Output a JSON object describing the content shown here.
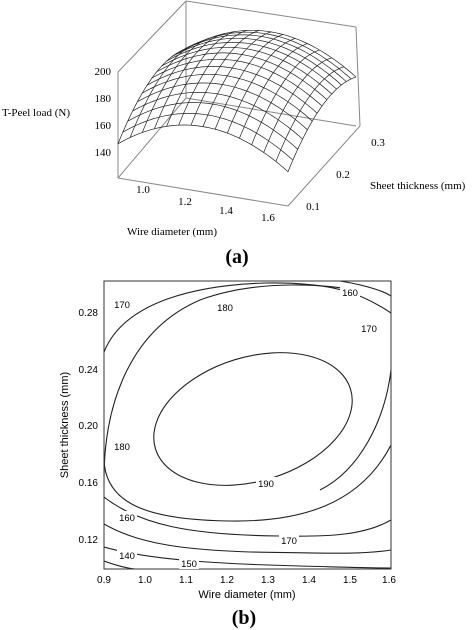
{
  "panel_a": {
    "caption": "(a)",
    "zlabel": "T-Peel load (N)",
    "xlabel": "Wire diameter (mm)",
    "ylabel": "Sheet thickness (mm)",
    "z_ticks": [
      "200",
      "180",
      "160",
      "140"
    ],
    "x_ticks": [
      "1.0",
      "1.2",
      "1.4",
      "1.6"
    ],
    "y_ticks": [
      "0.1",
      "0.2",
      "0.3"
    ]
  },
  "panel_b": {
    "caption": "(b)",
    "xlabel": "Wire diameter (mm)",
    "ylabel": "Sheet thickness (mm)",
    "x_ticks": [
      "0.9",
      "1.0",
      "1.1",
      "1.2",
      "1.3",
      "1.4",
      "1.5",
      "1.6"
    ],
    "y_ticks": [
      "0.28",
      "0.24",
      "0.20",
      "0.16",
      "0.12"
    ],
    "contour_labels": [
      "170",
      "180",
      "160",
      "170",
      "180",
      "190",
      "160",
      "170",
      "140",
      "150"
    ]
  },
  "chart_data": [
    {
      "type": "surface",
      "zlabel": "T-Peel load (N)",
      "xlabel": "Wire diameter (mm)",
      "ylabel": "Sheet thickness (mm)",
      "xlim": [
        0.9,
        1.6
      ],
      "ylim": [
        0.1,
        0.3
      ],
      "zlim": [
        130,
        205
      ],
      "x_ticks": [
        1.0,
        1.2,
        1.4,
        1.6
      ],
      "y_ticks": [
        0.1,
        0.2,
        0.3
      ],
      "z_ticks": [
        140,
        160,
        180,
        200
      ],
      "model": "peak ~195 N near wire diameter 1.25 mm, sheet thickness 0.22 mm; falls to ~140 N at low thickness",
      "grid": true
    },
    {
      "type": "contour",
      "xlabel": "Wire diameter (mm)",
      "ylabel": "Sheet thickness (mm)",
      "xlim": [
        0.9,
        1.6
      ],
      "ylim": [
        0.1,
        0.3
      ],
      "x_ticks": [
        0.9,
        1.0,
        1.1,
        1.2,
        1.3,
        1.4,
        1.5,
        1.6
      ],
      "y_ticks": [
        0.12,
        0.16,
        0.2,
        0.24,
        0.28
      ],
      "levels": [
        140,
        150,
        160,
        170,
        180,
        190
      ],
      "labeled_levels": [
        170,
        180,
        160,
        170,
        180,
        190,
        160,
        170,
        140,
        150
      ],
      "optimum": {
        "x": 1.27,
        "y": 0.22,
        "value": 193
      }
    }
  ]
}
